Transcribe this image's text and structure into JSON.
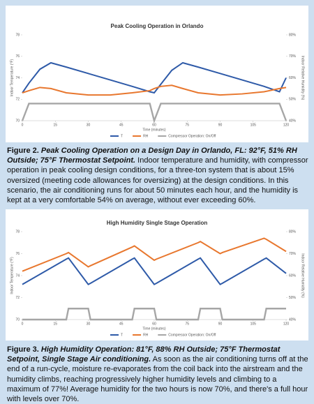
{
  "chart_data": [
    {
      "type": "line",
      "title": "Peak Cooling Operation in Orlando",
      "x_label": "Time (minutes)",
      "y_label": "Indoor Temperature (°F)",
      "y2_label": "Indoor Relative Humidity (%)",
      "x": [
        0,
        3,
        8,
        13,
        20,
        30,
        40,
        50,
        58,
        60,
        63,
        68,
        73,
        80,
        90,
        100,
        110,
        117,
        120
      ],
      "xlim": [
        0,
        120
      ],
      "xticks": [
        0,
        15,
        30,
        45,
        60,
        75,
        90,
        105,
        120
      ],
      "ylim": [
        70,
        78
      ],
      "yticks": [
        70,
        72,
        74,
        76,
        78
      ],
      "y2lim": [
        40,
        80
      ],
      "y2ticks": [
        {
          "value": 40,
          "label": "40%"
        },
        {
          "value": 50,
          "label": "50%"
        },
        {
          "value": 60,
          "label": "60%"
        },
        {
          "value": 70,
          "label": "70%"
        },
        {
          "value": 80,
          "label": "80%"
        }
      ],
      "series": [
        {
          "name": "T",
          "color": "#2e5aa8",
          "values": [
            72.6,
            73.5,
            74.8,
            75.4,
            75.0,
            74.4,
            73.8,
            73.2,
            72.7,
            72.6,
            73.4,
            74.7,
            75.4,
            75.0,
            74.4,
            73.8,
            73.2,
            72.7,
            74.0
          ]
        },
        {
          "name": "RH",
          "color": "#e8772e",
          "axis": "y2",
          "values": [
            53,
            54,
            55.5,
            55,
            53,
            52,
            52,
            53,
            54,
            55,
            56,
            56.5,
            55,
            53,
            52,
            52.5,
            53.5,
            55,
            55.5
          ]
        },
        {
          "name": "Compressor Operation: On/Off",
          "color": "#a6a6a6",
          "axis": "y2",
          "values": [
            40,
            48,
            48,
            48,
            48,
            48,
            48,
            48,
            48,
            40,
            48,
            48,
            48,
            48,
            48,
            48,
            48,
            48,
            40
          ]
        }
      ]
    },
    {
      "type": "line",
      "title": "High Humidity Single Stage Operation",
      "x_label": "Time (minutes)",
      "y_label": "Indoor Temperature (°F)",
      "y2_label": "Indoor Relative Humidity (%)",
      "x": [
        0,
        20,
        21,
        30,
        31,
        50,
        51,
        60,
        61,
        80,
        81,
        90,
        91,
        110,
        111,
        120
      ],
      "xlim": [
        0,
        120
      ],
      "xticks": [
        0,
        15,
        30,
        45,
        60,
        75,
        90,
        105,
        120
      ],
      "ylim": [
        70,
        78
      ],
      "yticks": [
        70,
        72,
        74,
        76,
        78
      ],
      "y2lim": [
        40,
        80
      ],
      "y2ticks": [
        {
          "value": 40,
          "label": "40%"
        },
        {
          "value": 50,
          "label": "50%"
        },
        {
          "value": 60,
          "label": "60%"
        },
        {
          "value": 70,
          "label": "70%"
        },
        {
          "value": 80,
          "label": "80%"
        }
      ],
      "series": [
        {
          "name": "T",
          "color": "#2e5aa8",
          "values": [
            73.2,
            75.5,
            75.6,
            73.2,
            73.3,
            75.5,
            75.6,
            73.2,
            73.3,
            75.5,
            75.6,
            73.2,
            73.3,
            75.5,
            75.6,
            74.2
          ]
        },
        {
          "name": "RH",
          "color": "#e8772e",
          "axis": "y2",
          "values": [
            62,
            70,
            70.5,
            64,
            64.5,
            73,
            73.5,
            67,
            67.5,
            75,
            75.5,
            70,
            70.5,
            77,
            76.5,
            71
          ]
        },
        {
          "name": "Compressor Operation: On/Off",
          "color": "#a6a6a6",
          "axis": "y2",
          "values": [
            40,
            40,
            45,
            45,
            40,
            40,
            45,
            45,
            40,
            40,
            45,
            45,
            40,
            40,
            45,
            45
          ]
        }
      ]
    }
  ],
  "captions": [
    {
      "label": "Figure 2.",
      "heading": "Peak Cooling Operation on a Design Day in Orlando, FL: 92°F, 51% RH Outside; 75°F Thermostat Setpoint.",
      "text": "Indoor temperature and humidity, with compressor operation in peak cooling design conditions, for a three-ton system that is about 15% oversized (meeting code allowances for oversizing) at the design conditions. In this scenario, the air conditioning runs for about 50 minutes each hour, and the humidity is kept at a very comfortable 54% on average, without ever exceeding 60%."
    },
    {
      "label": "Figure 3.",
      "heading": "High Humidity Operation: 81°F, 88% RH Outside; 75°F Thermostat Setpoint, Single Stage Air conditioning.",
      "text": "As soon as the air conditioning turns off at the end of a run-cycle, moisture re-evaporates from the coil back into the airstream and the humidity climbs, reaching progressively higher humidity levels and climbing to a maximum of 77%! Average humidity for the two hours is now 70%, and there's a full hour with levels over 70%."
    }
  ]
}
